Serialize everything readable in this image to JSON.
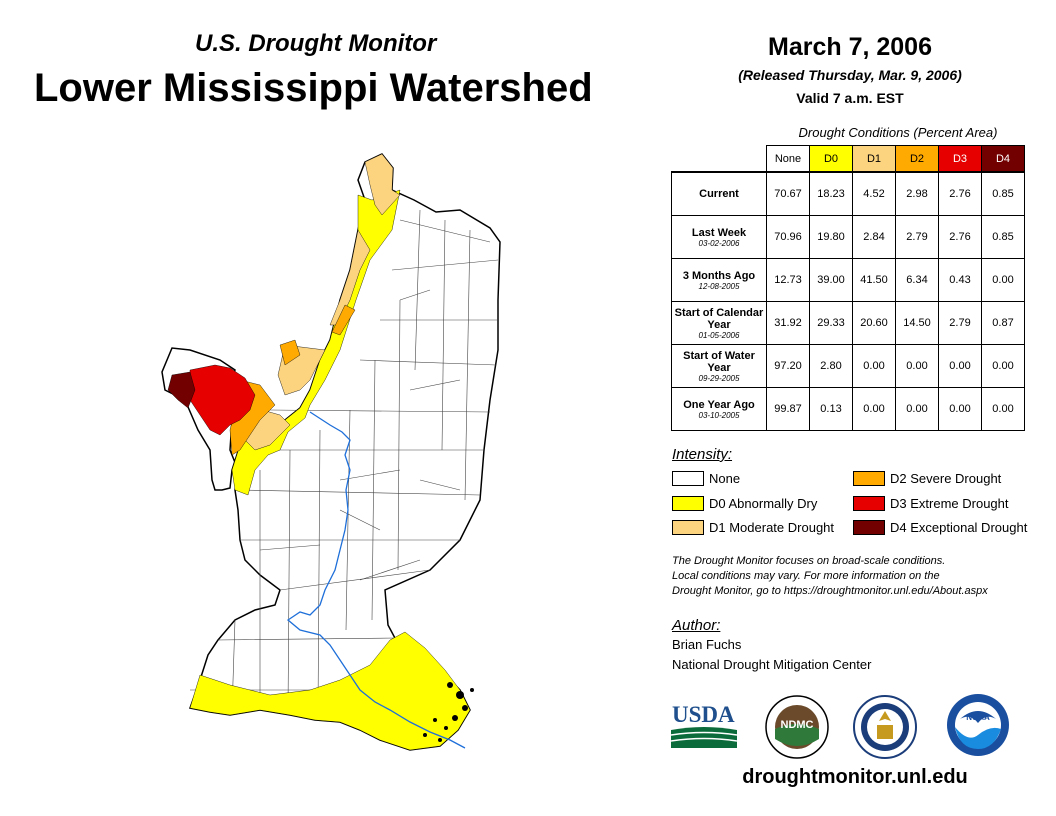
{
  "header": {
    "subtitle": "U.S. Drought Monitor",
    "title": "Lower Mississippi Watershed",
    "date": "March 7, 2006",
    "released": "(Released Thursday, Mar. 9, 2006)",
    "valid": "Valid 7 a.m. EST"
  },
  "table": {
    "caption": "Drought Conditions (Percent Area)",
    "columns": [
      "None",
      "D0",
      "D1",
      "D2",
      "D3",
      "D4"
    ],
    "column_colors": [
      "#ffffff",
      "#ffff00",
      "#fcd37f",
      "#ffaa00",
      "#e60000",
      "#730000"
    ],
    "rows": [
      {
        "label": "Current",
        "date": "",
        "values": [
          "70.67",
          "18.23",
          "4.52",
          "2.98",
          "2.76",
          "0.85"
        ]
      },
      {
        "label": "Last Week",
        "date": "03-02-2006",
        "values": [
          "70.96",
          "19.80",
          "2.84",
          "2.79",
          "2.76",
          "0.85"
        ]
      },
      {
        "label": "3 Months Ago",
        "date": "12-08-2005",
        "values": [
          "12.73",
          "39.00",
          "41.50",
          "6.34",
          "0.43",
          "0.00"
        ]
      },
      {
        "label": "Start of Calendar Year",
        "date": "01-05-2006",
        "values": [
          "31.92",
          "29.33",
          "20.60",
          "14.50",
          "2.79",
          "0.87"
        ]
      },
      {
        "label": "Start of Water Year",
        "date": "09-29-2005",
        "values": [
          "97.20",
          "2.80",
          "0.00",
          "0.00",
          "0.00",
          "0.00"
        ]
      },
      {
        "label": "One Year Ago",
        "date": "03-10-2005",
        "values": [
          "99.87",
          "0.13",
          "0.00",
          "0.00",
          "0.00",
          "0.00"
        ]
      }
    ]
  },
  "legend": {
    "heading": "Intensity:",
    "items": [
      {
        "label": "None",
        "color": "#ffffff"
      },
      {
        "label": "D0 Abnormally Dry",
        "color": "#ffff00"
      },
      {
        "label": "D1 Moderate Drought",
        "color": "#fcd37f"
      },
      {
        "label": "D2 Severe Drought",
        "color": "#ffaa00"
      },
      {
        "label": "D3 Extreme Drought",
        "color": "#e60000"
      },
      {
        "label": "D4 Exceptional Drought",
        "color": "#730000"
      }
    ]
  },
  "note": {
    "line1": "The Drought Monitor focuses on broad-scale conditions.",
    "line2": "Local conditions may vary. For more information on the",
    "line3": "Drought Monitor, go to https://droughtmonitor.unl.edu/About.aspx"
  },
  "author": {
    "heading": "Author:",
    "name": "Brian Fuchs",
    "org": "National Drought Mitigation Center"
  },
  "logos": {
    "usda": "USDA",
    "ndmc": "NDMC",
    "noaa": "NOAA"
  },
  "website": "droughtmonitor.unl.edu"
}
